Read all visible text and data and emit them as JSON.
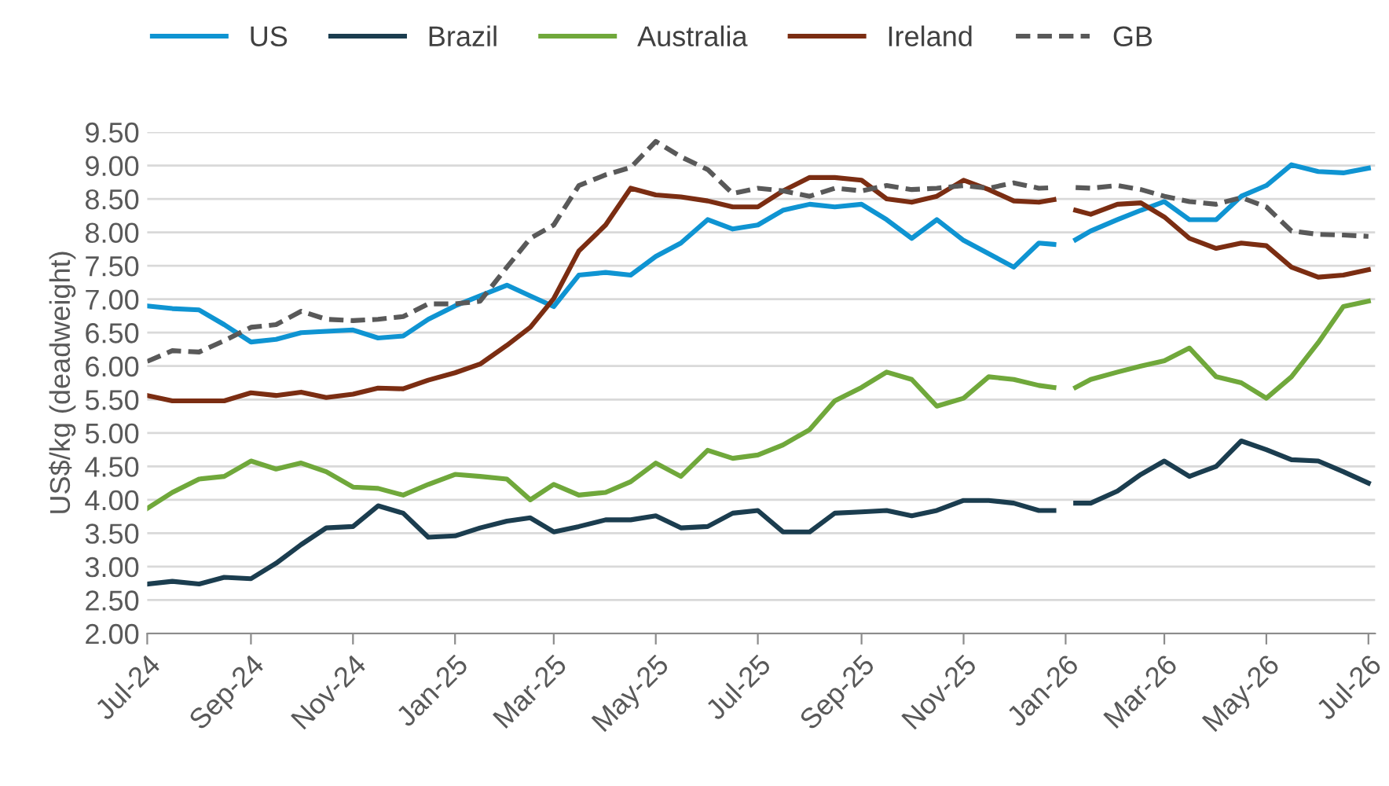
{
  "chart_data": {
    "type": "line",
    "ylabel": "US$/kg (deadweight)",
    "x": [
      "2024-07-01",
      "2024-07-16",
      "2024-08-01",
      "2024-08-16",
      "2024-09-01",
      "2024-09-16",
      "2024-10-01",
      "2024-10-16",
      "2024-11-01",
      "2024-11-16",
      "2024-12-01",
      "2024-12-16",
      "2025-01-01",
      "2025-01-16",
      "2025-02-01",
      "2025-02-15",
      "2025-03-01",
      "2025-03-16",
      "2025-04-01",
      "2025-04-16",
      "2025-05-01",
      "2025-05-16",
      "2025-06-01",
      "2025-06-16",
      "2025-07-01",
      "2025-07-16",
      "2025-08-01",
      "2025-08-16",
      "2025-09-01",
      "2025-09-16",
      "2025-10-01",
      "2025-10-16",
      "2025-11-01",
      "2025-11-16",
      "2025-12-01",
      "2025-12-16",
      "2025-12-25",
      "2026-01-01",
      "2026-01-07",
      "2026-01-16",
      "2026-02-01",
      "2026-02-15",
      "2026-03-01",
      "2026-03-16",
      "2026-04-01",
      "2026-04-16",
      "2026-05-01",
      "2026-05-16",
      "2026-06-01",
      "2026-06-16",
      "2026-07-01"
    ],
    "series": [
      {
        "name": "US",
        "color": "#0f94d2",
        "values": [
          6.9,
          6.86,
          6.84,
          6.62,
          6.36,
          6.4,
          6.5,
          6.52,
          6.54,
          6.42,
          6.45,
          6.7,
          6.9,
          7.05,
          7.21,
          7.05,
          6.89,
          7.36,
          7.4,
          7.36,
          7.64,
          7.84,
          8.19,
          8.05,
          8.11,
          8.33,
          8.42,
          8.38,
          8.42,
          8.19,
          7.91,
          8.19,
          7.88,
          7.68,
          7.48,
          7.84,
          7.82,
          null,
          7.89,
          8.02,
          8.19,
          8.33,
          8.46,
          8.19,
          8.19,
          8.54,
          8.7,
          9.01,
          8.91,
          8.89,
          8.96
        ]
      },
      {
        "name": "Brazil",
        "color": "#1b3d4f",
        "values": [
          2.74,
          2.78,
          2.74,
          2.84,
          2.82,
          3.05,
          3.33,
          3.58,
          3.6,
          3.91,
          3.8,
          3.44,
          3.46,
          3.58,
          3.68,
          3.73,
          3.52,
          3.6,
          3.7,
          3.7,
          3.76,
          3.58,
          3.6,
          3.8,
          3.84,
          3.52,
          3.52,
          3.8,
          3.82,
          3.84,
          3.76,
          3.84,
          3.99,
          3.99,
          3.95,
          3.84,
          3.84,
          null,
          3.95,
          3.95,
          4.13,
          4.38,
          4.58,
          4.35,
          4.5,
          4.88,
          4.75,
          4.6,
          4.58,
          4.42,
          4.25
        ]
      },
      {
        "name": "Australia",
        "color": "#70a83b",
        "values": [
          3.87,
          4.11,
          4.31,
          4.35,
          4.58,
          4.46,
          4.55,
          4.42,
          4.19,
          4.17,
          4.07,
          4.23,
          4.38,
          4.35,
          4.31,
          4.0,
          4.23,
          4.07,
          4.11,
          4.27,
          4.55,
          4.35,
          4.74,
          4.62,
          4.67,
          4.82,
          5.05,
          5.48,
          5.68,
          5.91,
          5.8,
          5.4,
          5.52,
          5.84,
          5.8,
          5.71,
          5.68,
          null,
          5.68,
          5.8,
          5.91,
          6.0,
          6.08,
          6.27,
          5.84,
          5.75,
          5.52,
          5.84,
          6.35,
          6.89,
          6.97
        ]
      },
      {
        "name": "Ireland",
        "color": "#7b2d12",
        "values": [
          5.56,
          5.48,
          5.48,
          5.48,
          5.6,
          5.56,
          5.61,
          5.53,
          5.58,
          5.67,
          5.66,
          5.79,
          5.9,
          6.03,
          6.31,
          6.58,
          7.01,
          7.72,
          8.11,
          8.66,
          8.56,
          8.53,
          8.47,
          8.38,
          8.38,
          8.62,
          8.82,
          8.82,
          8.78,
          8.5,
          8.45,
          8.54,
          8.78,
          8.64,
          8.47,
          8.45,
          8.49,
          null,
          8.33,
          8.27,
          8.42,
          8.44,
          8.23,
          7.91,
          7.76,
          7.84,
          7.8,
          7.48,
          7.33,
          7.36,
          7.44
        ]
      },
      {
        "name": "GB",
        "color": "#595959",
        "line_style": "dashed",
        "values": [
          6.07,
          6.23,
          6.21,
          6.38,
          6.58,
          6.62,
          6.82,
          6.7,
          6.68,
          6.7,
          6.74,
          6.93,
          6.93,
          6.97,
          7.48,
          7.91,
          8.11,
          8.7,
          8.86,
          8.97,
          9.36,
          9.13,
          8.94,
          8.58,
          8.66,
          8.62,
          8.54,
          8.66,
          8.62,
          8.7,
          8.64,
          8.66,
          8.7,
          8.66,
          8.74,
          8.66,
          8.67,
          null,
          8.67,
          8.66,
          8.7,
          8.64,
          8.54,
          8.46,
          8.42,
          8.52,
          8.38,
          8.02,
          7.97,
          7.96,
          7.94
        ]
      }
    ],
    "xlim": [
      "2024-07-01",
      "2026-07-05"
    ],
    "xticks": [
      {
        "value": "2024-07-01",
        "label": "Jul-24"
      },
      {
        "value": "2024-09-01",
        "label": "Sep-24"
      },
      {
        "value": "2024-11-01",
        "label": "Nov-24"
      },
      {
        "value": "2025-01-01",
        "label": "Jan-25"
      },
      {
        "value": "2025-03-01",
        "label": "Mar-25"
      },
      {
        "value": "2025-05-01",
        "label": "May-25"
      },
      {
        "value": "2025-07-01",
        "label": "Jul-25"
      },
      {
        "value": "2025-09-01",
        "label": "Sep-25"
      },
      {
        "value": "2025-11-01",
        "label": "Nov-25"
      },
      {
        "value": "2026-01-01",
        "label": "Jan-26"
      },
      {
        "value": "2026-03-01",
        "label": "Mar-26"
      },
      {
        "value": "2026-05-01",
        "label": "May-26"
      },
      {
        "value": "2026-07-01",
        "label": "Jul-26"
      }
    ],
    "ylim": [
      2.0,
      9.5
    ],
    "yticks": [
      {
        "value": 2.0,
        "label": "2.00"
      },
      {
        "value": 2.5,
        "label": "2.50"
      },
      {
        "value": 3.0,
        "label": "3.00"
      },
      {
        "value": 3.5,
        "label": "3.50"
      },
      {
        "value": 4.0,
        "label": "4.00"
      },
      {
        "value": 4.5,
        "label": "4.50"
      },
      {
        "value": 5.0,
        "label": "5.00"
      },
      {
        "value": 5.5,
        "label": "5.50"
      },
      {
        "value": 6.0,
        "label": "6.00"
      },
      {
        "value": 6.5,
        "label": "6.50"
      },
      {
        "value": 7.0,
        "label": "7.00"
      },
      {
        "value": 7.5,
        "label": "7.50"
      },
      {
        "value": 8.0,
        "label": "8.00"
      },
      {
        "value": 8.5,
        "label": "8.50"
      },
      {
        "value": 9.0,
        "label": "9.00"
      },
      {
        "value": 9.5,
        "label": "9.50"
      }
    ],
    "grid": "y",
    "legend": "top",
    "marker": "none",
    "line_style": "solid"
  }
}
